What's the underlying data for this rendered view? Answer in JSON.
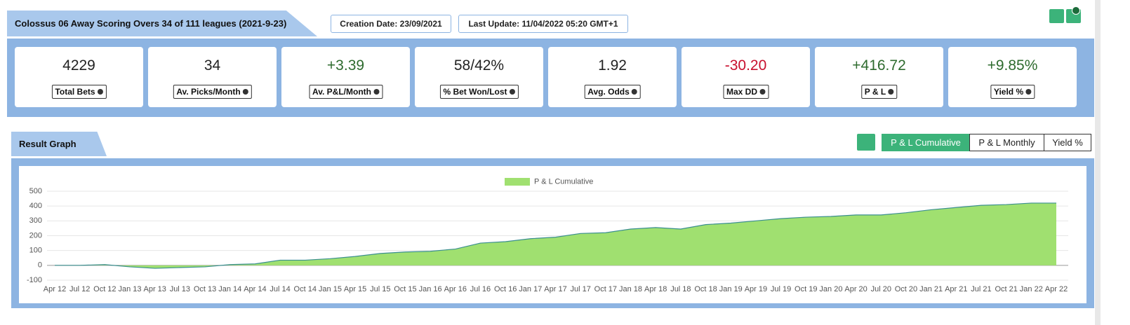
{
  "header": {
    "title": "Colossus 06 Away Scoring Overs 34 of 111 leagues (2021-9-23)",
    "creation_date": "Creation Date: 23/09/2021",
    "last_update": "Last Update: 11/04/2022 05:20 GMT+1"
  },
  "stats": [
    {
      "value": "4229",
      "label": "Total Bets",
      "color": "#222222"
    },
    {
      "value": "34",
      "label": "Av. Picks/Month",
      "color": "#222222"
    },
    {
      "value": "+3.39",
      "label": "Av. P&L/Month",
      "color": "#2e6b2e"
    },
    {
      "value": "58/42%",
      "label": "% Bet Won/Lost",
      "color": "#222222"
    },
    {
      "value": "1.92",
      "label": "Avg. Odds",
      "color": "#222222"
    },
    {
      "value": "-30.20",
      "label": "Max DD",
      "color": "#c8102e"
    },
    {
      "value": "+416.72",
      "label": "P & L",
      "color": "#2e6b2e"
    },
    {
      "value": "+9.85%",
      "label": "Yield %",
      "color": "#2e6b2e"
    }
  ],
  "graph": {
    "title": "Result Graph",
    "tabs": [
      "P & L Cumulative",
      "P & L Monthly",
      "Yield %"
    ],
    "active_tab": 0
  },
  "chart_data": {
    "type": "area",
    "categories": [
      "Apr 12",
      "Jul 12",
      "Oct 12",
      "Jan 13",
      "Apr 13",
      "Jul 13",
      "Oct 13",
      "Jan 14",
      "Apr 14",
      "Jul 14",
      "Oct 14",
      "Jan 15",
      "Apr 15",
      "Jul 15",
      "Oct 15",
      "Jan 16",
      "Apr 16",
      "Jul 16",
      "Oct 16",
      "Jan 17",
      "Apr 17",
      "Jul 17",
      "Oct 17",
      "Jan 18",
      "Apr 18",
      "Jul 18",
      "Oct 18",
      "Jan 19",
      "Apr 19",
      "Jul 19",
      "Oct 19",
      "Jan 20",
      "Apr 20",
      "Jul 20",
      "Oct 20",
      "Jan 21",
      "Apr 21",
      "Jul 21",
      "Oct 21",
      "Jan 22",
      "Apr 22"
    ],
    "series": [
      {
        "name": "P & L Cumulative",
        "color": "#a0e070",
        "line_color": "#3b8f8f",
        "values": [
          0,
          0,
          5,
          -10,
          -20,
          -15,
          -10,
          5,
          10,
          35,
          35,
          45,
          60,
          80,
          90,
          95,
          110,
          150,
          160,
          180,
          190,
          215,
          220,
          245,
          255,
          245,
          275,
          285,
          300,
          315,
          325,
          330,
          340,
          340,
          355,
          375,
          390,
          405,
          410,
          420,
          420
        ]
      }
    ],
    "ylim": [
      -100,
      500
    ],
    "yticks": [
      -100,
      0,
      100,
      200,
      300,
      400,
      500
    ],
    "grid": true,
    "legend": "top"
  }
}
